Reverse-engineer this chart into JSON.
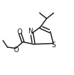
{
  "background": "#ffffff",
  "line_color": "#1a1a1a",
  "line_width": 1.1,
  "figsize": [
    1.07,
    1.08
  ],
  "dpi": 100,
  "xlim": [
    0.0,
    1.0
  ],
  "ylim": [
    0.0,
    1.0
  ]
}
